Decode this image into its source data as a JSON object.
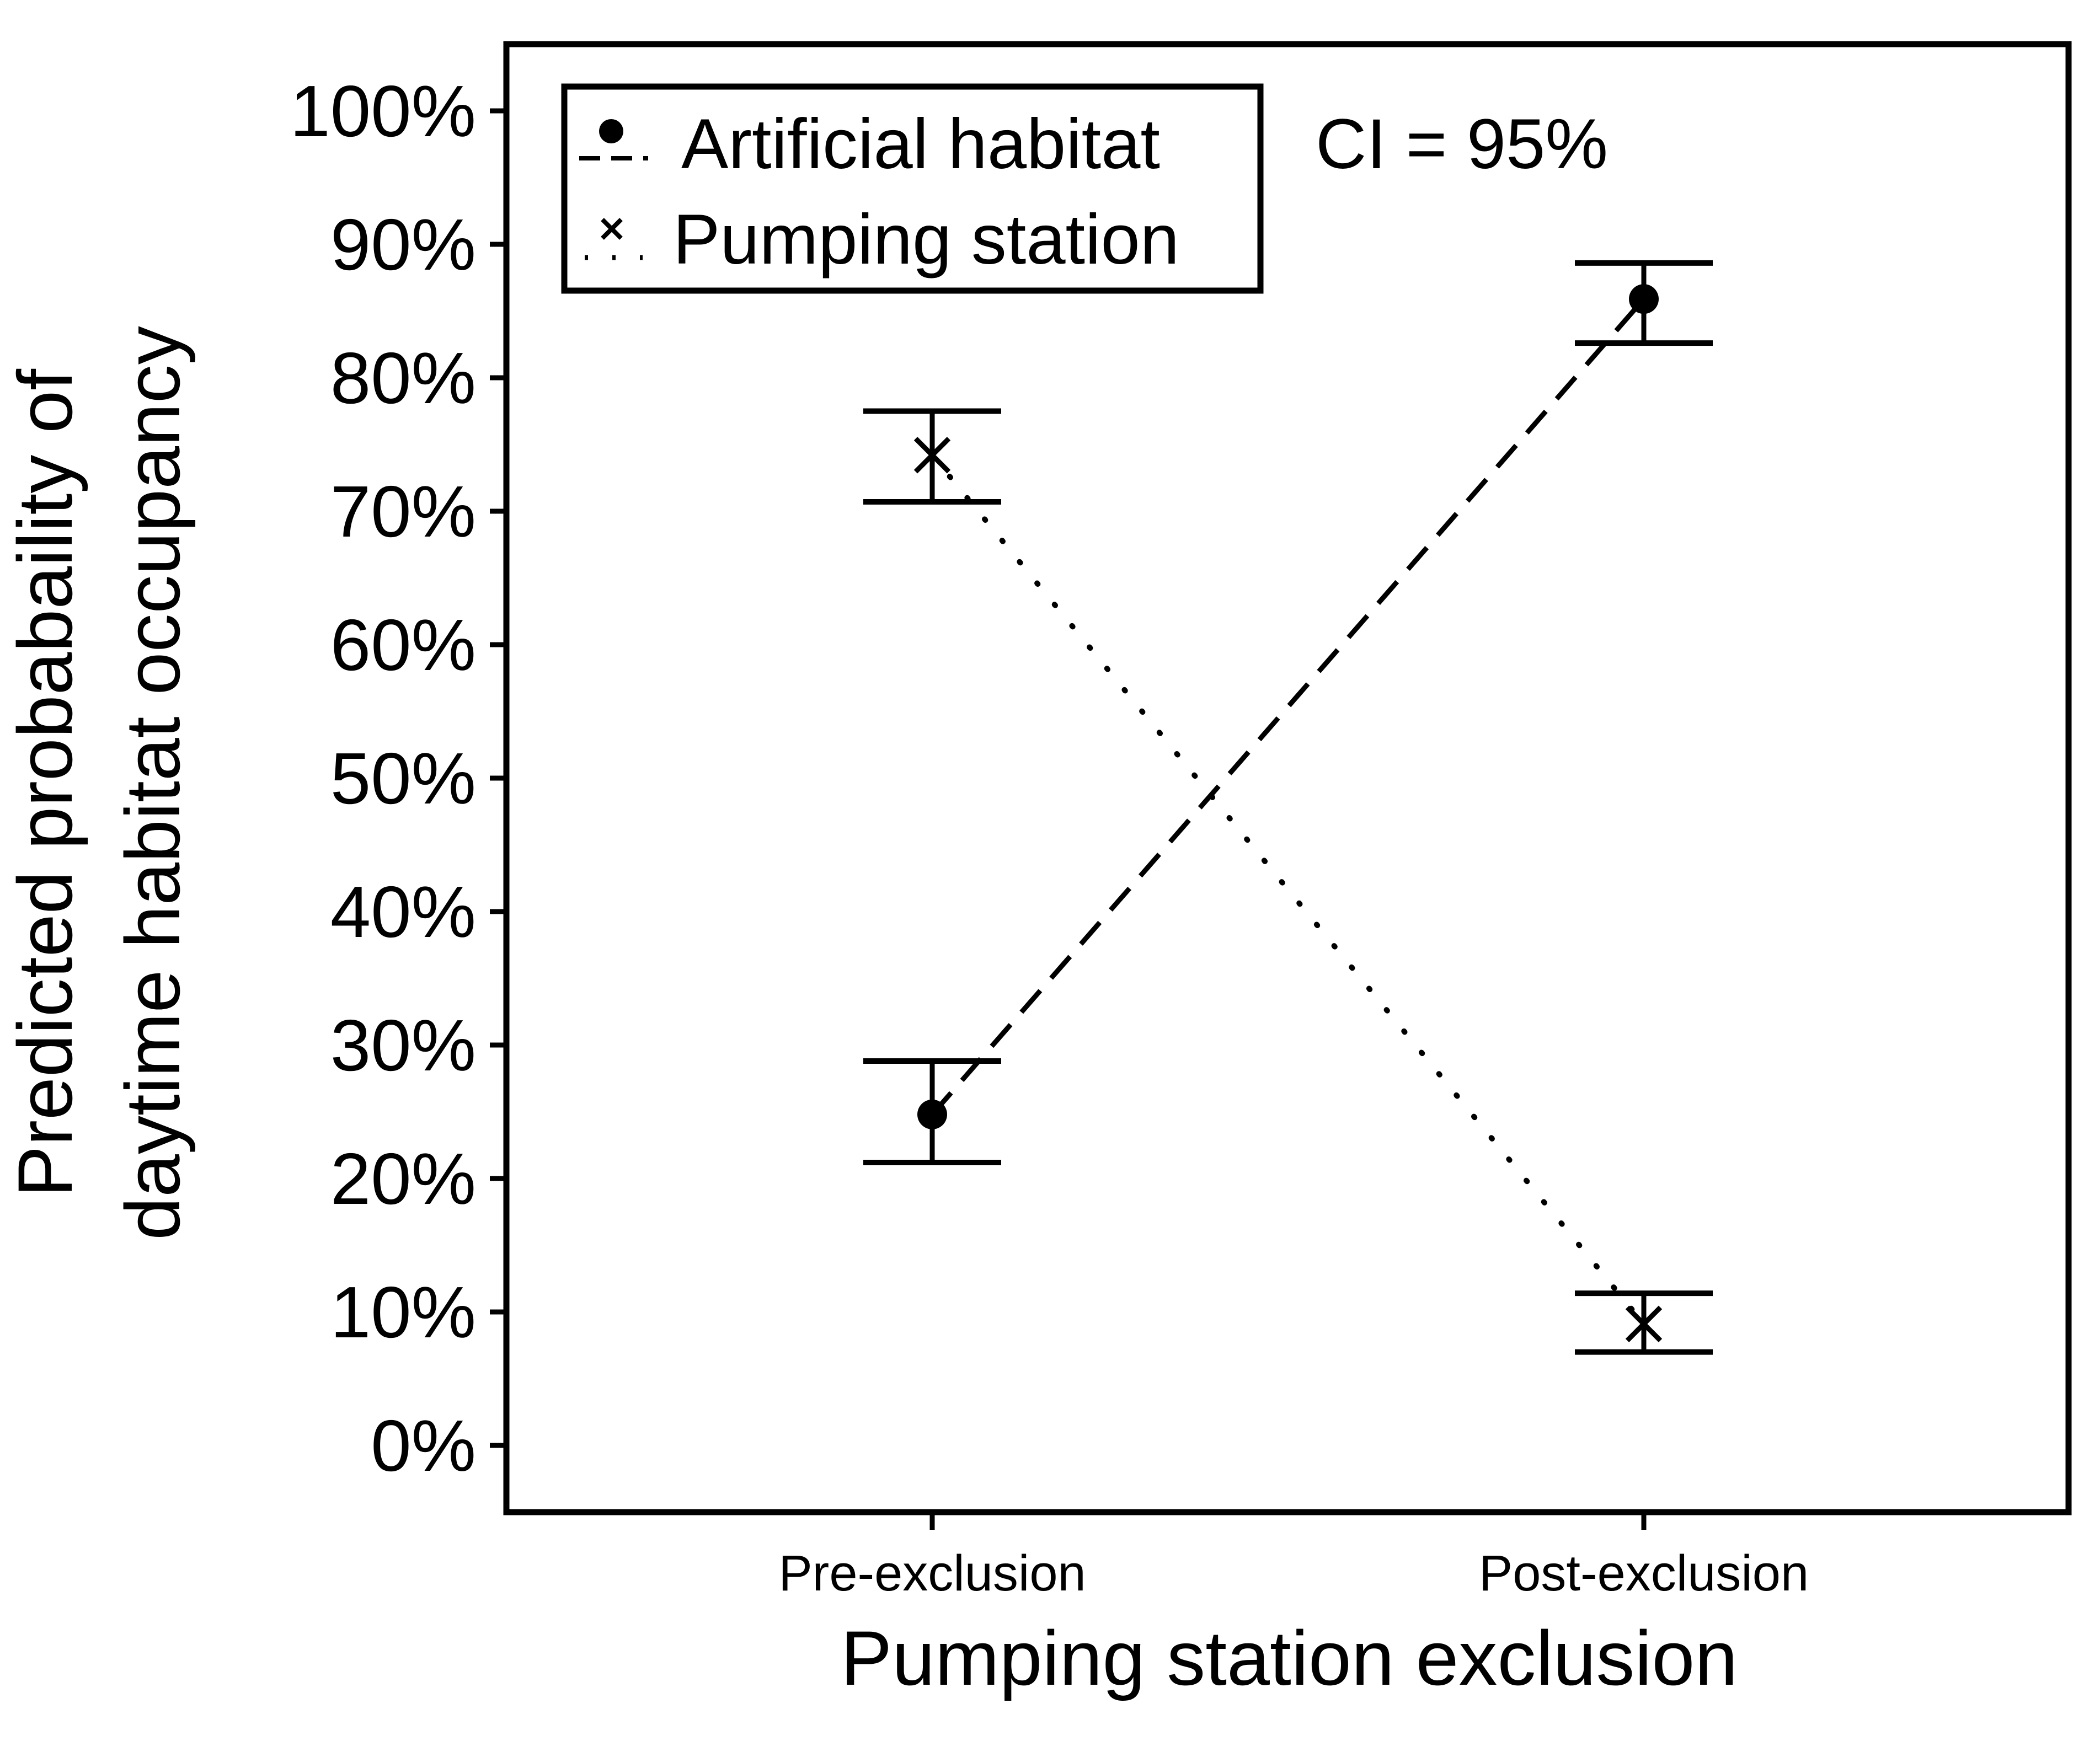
{
  "chart_data": {
    "type": "line",
    "title": "",
    "xlabel": "Pumping station exclusion",
    "ylabel_lines": [
      "Predicted probabaility of",
      "daytime habitat occupancy"
    ],
    "categories": [
      "Pre-exclusion",
      "Post-exclusion"
    ],
    "ylim": [
      -0.05,
      1.05
    ],
    "yticks": [
      0,
      0.1,
      0.2,
      0.3,
      0.4,
      0.5,
      0.6,
      0.7,
      0.8,
      0.9,
      1.0
    ],
    "ytick_labels": [
      "0%",
      "10%",
      "20%",
      "30%",
      "40%",
      "50%",
      "60%",
      "70%",
      "80%",
      "90%",
      "100%"
    ],
    "annotation": "CI = 95%",
    "legend_position": "top-left",
    "grid": false,
    "series": [
      {
        "name": "Artificial habitat",
        "marker": "dot",
        "line_style": "dashed",
        "values": [
          0.248,
          0.859
        ],
        "ci_low": [
          0.212,
          0.826
        ],
        "ci_high": [
          0.288,
          0.886
        ]
      },
      {
        "name": "Pumping station",
        "marker": "x",
        "line_style": "dotted",
        "values": [
          0.742,
          0.091
        ],
        "ci_low": [
          0.707,
          0.07
        ],
        "ci_high": [
          0.775,
          0.114
        ]
      }
    ]
  }
}
